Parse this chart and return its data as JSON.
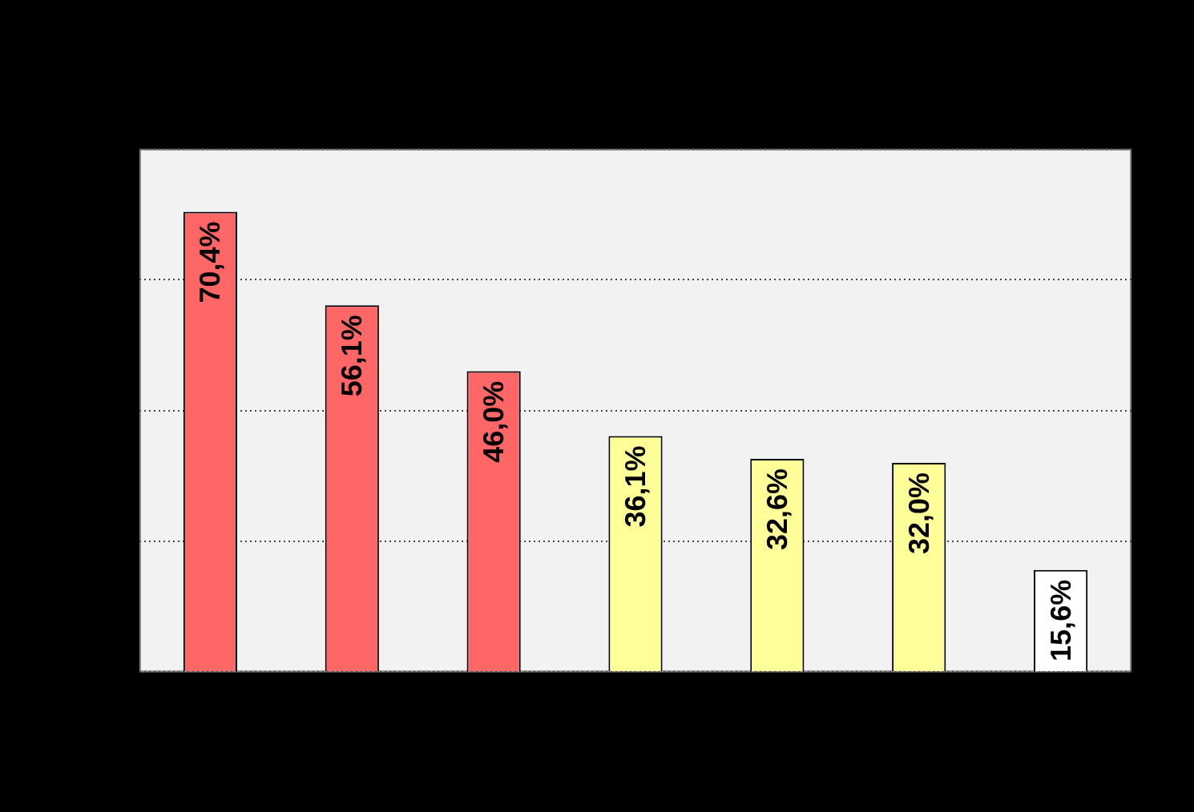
{
  "chart_data": {
    "type": "bar",
    "categories": [
      null,
      null,
      null,
      null,
      null,
      null,
      null
    ],
    "values": [
      70.4,
      56.1,
      46.0,
      36.1,
      32.6,
      32.0,
      15.6
    ],
    "colors": [
      "#ff6666",
      "#ff6666",
      "#ff6666",
      "#ffff99",
      "#ffff99",
      "#ffff99",
      "#ffffff"
    ],
    "value_labels": [
      "70,4%",
      "56,1%",
      "46,0%",
      "36,1%",
      "32,6%",
      "32,0%",
      "15,6%"
    ],
    "ylim": [
      0,
      80
    ],
    "yticks": [
      {
        "value": 0,
        "label": null
      },
      {
        "value": 20,
        "label": null
      },
      {
        "value": 40,
        "label": null
      },
      {
        "value": 60,
        "label": null
      },
      {
        "value": 80,
        "label": null
      }
    ],
    "grid": "y",
    "legend": false
  }
}
